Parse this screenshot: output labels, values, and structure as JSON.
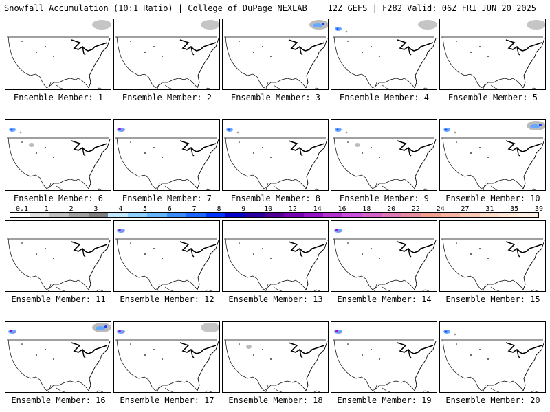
{
  "header": {
    "title_left": "Snowfall Accumulation (10:1 Ratio) | College of DuPage NEXLAB",
    "title_right": "12Z GEFS | F282 Valid: 06Z FRI JUN 20 2025"
  },
  "panels": [
    {
      "label": "Ensemble Member: 1",
      "snow": [
        "ne-gray"
      ]
    },
    {
      "label": "Ensemble Member: 2",
      "snow": [
        "ne-gray"
      ]
    },
    {
      "label": "Ensemble Member: 3",
      "snow": [
        "ne-blue"
      ]
    },
    {
      "label": "Ensemble Member: 4",
      "snow": [
        "nw-blue",
        "ne-gray"
      ]
    },
    {
      "label": "Ensemble Member: 5",
      "snow": [
        "ne-gray"
      ]
    },
    {
      "label": "Ensemble Member: 6",
      "snow": [
        "nw-blue",
        "mid-gray"
      ]
    },
    {
      "label": "Ensemble Member: 7",
      "snow": [
        "nw-purple"
      ]
    },
    {
      "label": "Ensemble Member: 8",
      "snow": [
        "nw-blue"
      ]
    },
    {
      "label": "Ensemble Member: 9",
      "snow": [
        "nw-blue",
        "mid-gray"
      ]
    },
    {
      "label": "Ensemble Member: 10",
      "snow": [
        "ne-blue",
        "nw-blue"
      ]
    },
    {
      "label": "Ensemble Member: 11",
      "snow": []
    },
    {
      "label": "Ensemble Member: 12",
      "snow": [
        "nw-purple"
      ]
    },
    {
      "label": "Ensemble Member: 13",
      "snow": []
    },
    {
      "label": "Ensemble Member: 14",
      "snow": [
        "nw-purple"
      ]
    },
    {
      "label": "Ensemble Member: 15",
      "snow": []
    },
    {
      "label": "Ensemble Member: 16",
      "snow": [
        "ne-blue",
        "nw-purple"
      ]
    },
    {
      "label": "Ensemble Member: 17",
      "snow": [
        "nw-purple",
        "ne-gray"
      ]
    },
    {
      "label": "Ensemble Member: 18",
      "snow": [
        "mid-gray"
      ]
    },
    {
      "label": "Ensemble Member: 19",
      "snow": [
        "nw-purple"
      ]
    },
    {
      "label": "Ensemble Member: 20",
      "snow": [
        "nw-blue"
      ]
    }
  ],
  "scale": {
    "ticks": [
      "0.1",
      "1",
      "2",
      "3",
      "4",
      "5",
      "6",
      "7",
      "8",
      "9",
      "10",
      "12",
      "14",
      "16",
      "18",
      "20",
      "22",
      "24",
      "27",
      "31",
      "35",
      "39"
    ],
    "colors": [
      "#ffffff",
      "#e0e0e0",
      "#c0c0c0",
      "#a0a0a0",
      "#808080",
      "#bfe8ff",
      "#90d0ff",
      "#64b4ff",
      "#3c8cff",
      "#1e64ff",
      "#0032ff",
      "#0000c8",
      "#2800a0",
      "#500096",
      "#7800b4",
      "#9614c8",
      "#b432d2",
      "#c850dc",
      "#d264c8",
      "#dc78b4",
      "#e68ca0",
      "#f0a08c",
      "#f5b4a0",
      "#fac8b4",
      "#ffdcc8",
      "#ffe8d8",
      "#fff0e6"
    ]
  }
}
